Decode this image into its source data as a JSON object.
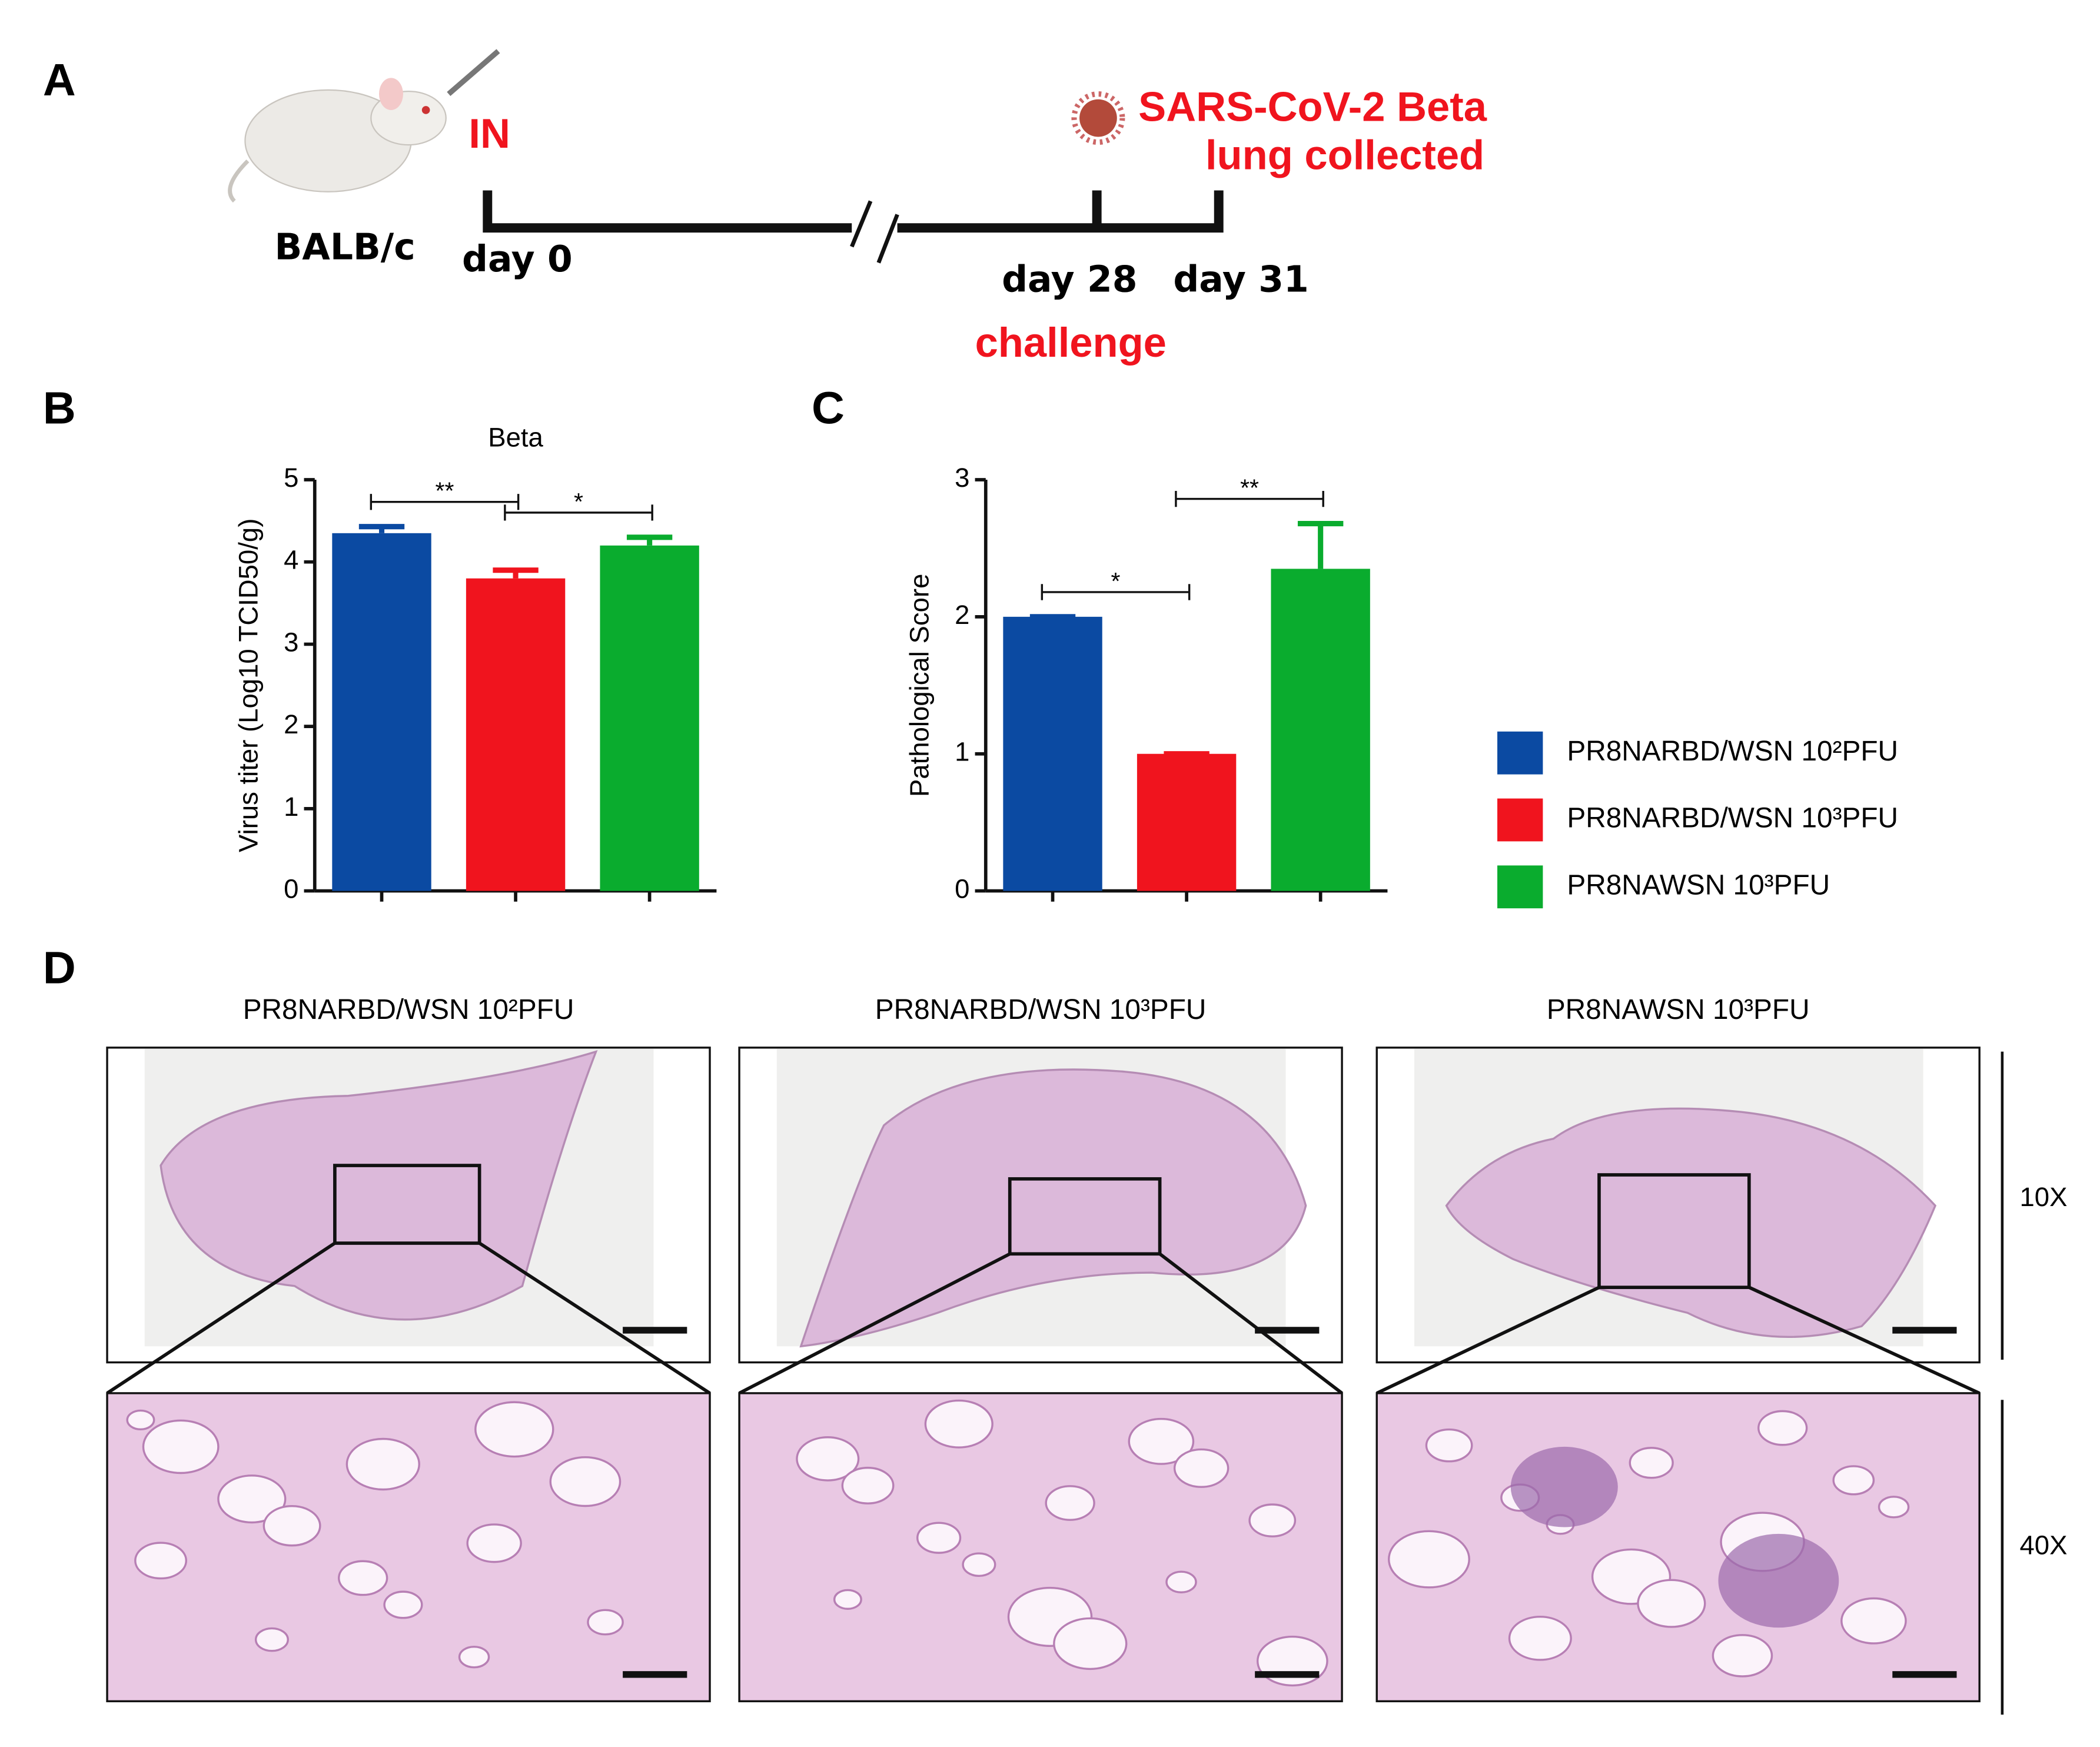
{
  "panels": {
    "a": "A",
    "b": "B",
    "c": "C",
    "d": "D"
  },
  "timeline": {
    "route": "IN",
    "strain": "BALB/c",
    "day0": "day 0",
    "day28": "day 28",
    "day31": "day 31",
    "challenge": "challenge",
    "virus": "SARS-CoV-2 Beta",
    "collect": "lung collected"
  },
  "legend": {
    "entries": [
      {
        "name": "PR8NARBD/WSN 10²PFU",
        "color": "#0b4aa2"
      },
      {
        "name": "PR8NARBD/WSN 10³PFU",
        "color": "#f0141e"
      },
      {
        "name": "PR8NAWSN 10³PFU",
        "color": "#0aac2e"
      }
    ]
  },
  "histology": {
    "titles": [
      "PR8NARBD/WSN 10²PFU",
      "PR8NARBD/WSN 10³PFU",
      "PR8NAWSN 10³PFU"
    ],
    "low_mag": "10X",
    "high_mag": "40X"
  },
  "chart_data": [
    {
      "type": "bar",
      "title": "Beta",
      "y_label": "Virus titer (Log10 TCID50/g)",
      "categories": [
        null,
        null,
        null
      ],
      "values": [
        4.35,
        3.8,
        4.2
      ],
      "errors": [
        0.08,
        0.1,
        0.1
      ],
      "colors": [
        "#0b4aa2",
        "#f0141e",
        "#0aac2e"
      ],
      "ylim": [
        0,
        5
      ],
      "yticks": [
        0,
        1,
        2,
        3,
        4,
        5
      ],
      "annotations": [
        {
          "from": 0,
          "to": 1,
          "label": "**"
        },
        {
          "from": 1,
          "to": 2,
          "label": "*"
        }
      ]
    },
    {
      "type": "bar",
      "y_label": "Pathological Score",
      "categories": [
        null,
        null,
        null
      ],
      "values": [
        2.0,
        1.0,
        2.35
      ],
      "errors": [
        0.0,
        0.0,
        0.33
      ],
      "colors": [
        "#0b4aa2",
        "#f0141e",
        "#0aac2e"
      ],
      "ylim": [
        0,
        3
      ],
      "yticks": [
        0,
        1,
        2,
        3
      ],
      "annotations": [
        {
          "from": 0,
          "to": 1,
          "label": "*"
        },
        {
          "from": 1,
          "to": 2,
          "label": "**"
        }
      ]
    }
  ]
}
